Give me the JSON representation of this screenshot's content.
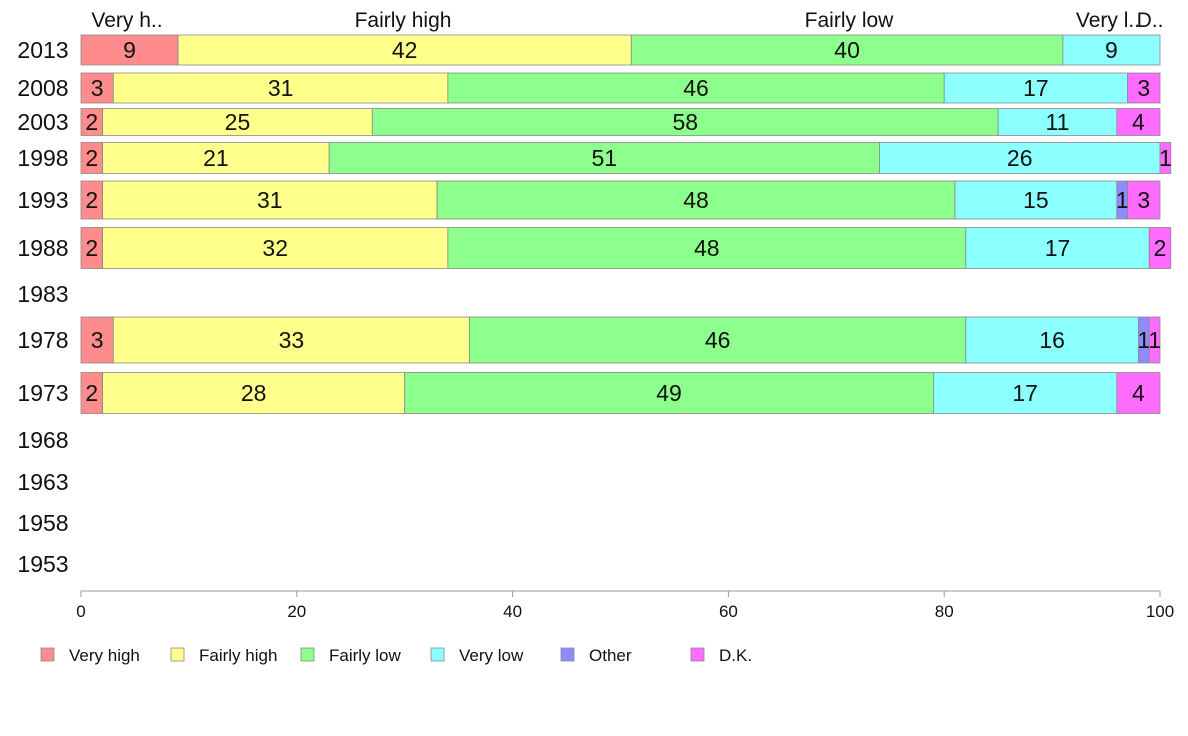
{
  "chart_data": {
    "type": "bar",
    "orientation": "horizontal",
    "stacked": true,
    "title": "",
    "xlabel": "",
    "ylabel": "",
    "xlim": [
      0,
      100
    ],
    "x_ticks": [
      "0",
      "20",
      "40",
      "60",
      "80",
      "100"
    ],
    "grid": false,
    "legend_position": "bottom",
    "top_labels": [
      "Very h..",
      "Fairly high",
      "Fairly low",
      "Very l..",
      "D.."
    ],
    "categories": [
      "2013",
      "2008",
      "2003",
      "1998",
      "1993",
      "1988",
      "1983",
      "1978",
      "1973",
      "1968",
      "1963",
      "1958",
      "1953"
    ],
    "series": [
      {
        "name": "Very high",
        "color": "#ff8c8c",
        "values": [
          9,
          3,
          2,
          2,
          2,
          2,
          null,
          3,
          2,
          null,
          null,
          null,
          null
        ]
      },
      {
        "name": "Fairly high",
        "color": "#ffff8c",
        "values": [
          42,
          31,
          25,
          21,
          31,
          32,
          null,
          33,
          28,
          null,
          null,
          null,
          null
        ]
      },
      {
        "name": "Fairly low",
        "color": "#8cff8c",
        "values": [
          40,
          46,
          58,
          51,
          48,
          48,
          null,
          46,
          49,
          null,
          null,
          null,
          null
        ]
      },
      {
        "name": "Very low",
        "color": "#8cffff",
        "values": [
          9,
          17,
          11,
          26,
          15,
          17,
          null,
          16,
          17,
          null,
          null,
          null,
          null
        ]
      },
      {
        "name": "Other",
        "color": "#8c8cff",
        "values": [
          0,
          0,
          0,
          0,
          1,
          0,
          null,
          1,
          0,
          null,
          null,
          null,
          null
        ]
      },
      {
        "name": "D.K.",
        "color": "#ff6cff",
        "values": [
          0,
          3,
          4,
          1,
          3,
          2,
          null,
          1,
          4,
          null,
          null,
          null,
          null
        ]
      }
    ]
  }
}
